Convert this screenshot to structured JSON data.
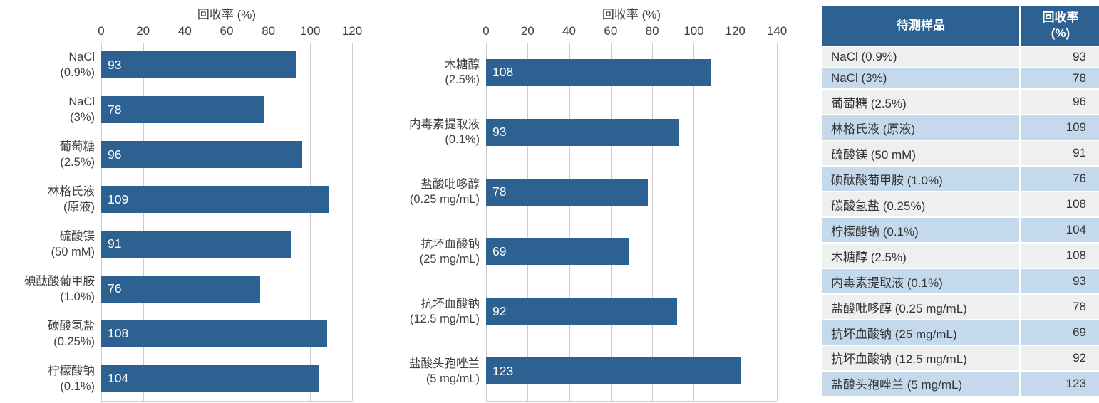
{
  "colors": {
    "bar": "#2d6191",
    "table_header_bg": "#2d6191",
    "table_header_text": "#ffffff",
    "row_alt_gray": "#eef0f0",
    "row_alt_blue": "#c5d9ec",
    "gridline": "#cccccc",
    "axis_text": "#3f3f3f",
    "bar_value_text": "#ffffff"
  },
  "chart_data": [
    {
      "type": "bar",
      "orientation": "horizontal",
      "title": "回收率 (%)",
      "xlabel": "",
      "ylabel": "",
      "xlim": [
        0,
        120
      ],
      "ticks": [
        0,
        20,
        40,
        60,
        80,
        100,
        120
      ],
      "grid": true,
      "legend": false,
      "categories": [
        "NaCl (0.9%)",
        "NaCl (3%)",
        "葡萄糖 (2.5%)",
        "林格氏液 (原液)",
        "硫酸镁 (50 mM)",
        "碘酞酸葡甲胺 (1.0%)",
        "碳酸氢盐 (0.25%)",
        "柠檬酸钠 (0.1%)"
      ],
      "category_lines": [
        [
          "NaCl",
          "(0.9%)"
        ],
        [
          "NaCl",
          "(3%)"
        ],
        [
          "葡萄糖",
          "(2.5%)"
        ],
        [
          "林格氏液",
          "(原液)"
        ],
        [
          "硫酸镁",
          "(50 mM)"
        ],
        [
          "碘酞酸葡甲胺",
          "(1.0%)"
        ],
        [
          "碳酸氢盐",
          "(0.25%)"
        ],
        [
          "柠檬酸钠",
          "(0.1%)"
        ]
      ],
      "values": [
        93,
        78,
        96,
        109,
        91,
        76,
        108,
        104
      ]
    },
    {
      "type": "bar",
      "orientation": "horizontal",
      "title": "回收率 (%)",
      "xlabel": "",
      "ylabel": "",
      "xlim": [
        0,
        140
      ],
      "ticks": [
        0,
        20,
        40,
        60,
        80,
        100,
        120,
        140
      ],
      "grid": true,
      "legend": false,
      "categories": [
        "木糖醇 (2.5%)",
        "内毒素提取液 (0.1%)",
        "盐酸吡哆醇 (0.25 mg/mL)",
        "抗坏血酸钠 (25 mg/mL)",
        "抗坏血酸钠 (12.5 mg/mL)",
        "盐酸头孢唑兰 (5 mg/mL)"
      ],
      "category_lines": [
        [
          "木糖醇",
          "(2.5%)"
        ],
        [
          "内毒素提取液",
          "(0.1%)"
        ],
        [
          "盐酸吡哆醇",
          "(0.25 mg/mL)"
        ],
        [
          "抗坏血酸钠",
          "(25 mg/mL)"
        ],
        [
          "抗坏血酸钠",
          "(12.5 mg/mL)"
        ],
        [
          "盐酸头孢唑兰",
          "(5 mg/mL)"
        ]
      ],
      "values": [
        108,
        93,
        78,
        69,
        92,
        123
      ]
    },
    {
      "type": "table",
      "headers": [
        "待测样品",
        "回收率\n(%)"
      ],
      "rows": [
        [
          "NaCl (0.9%)",
          93
        ],
        [
          "NaCl (3%)",
          78
        ],
        [
          "葡萄糖 (2.5%)",
          96
        ],
        [
          "林格氏液 (原液)",
          109
        ],
        [
          "硫酸镁 (50 mM)",
          91
        ],
        [
          "碘酞酸葡甲胺 (1.0%)",
          76
        ],
        [
          "碳酸氢盐 (0.25%)",
          108
        ],
        [
          "柠檬酸钠 (0.1%)",
          104
        ],
        [
          "木糖醇 (2.5%)",
          108
        ],
        [
          "内毒素提取液 (0.1%)",
          93
        ],
        [
          "盐酸吡哆醇 (0.25 mg/mL)",
          78
        ],
        [
          "抗坏血酸钠 (25 mg/mL)",
          69
        ],
        [
          "抗坏血酸钠 (12.5 mg/mL)",
          92
        ],
        [
          "盐酸头孢唑兰 (5 mg/mL)",
          123
        ]
      ]
    }
  ]
}
